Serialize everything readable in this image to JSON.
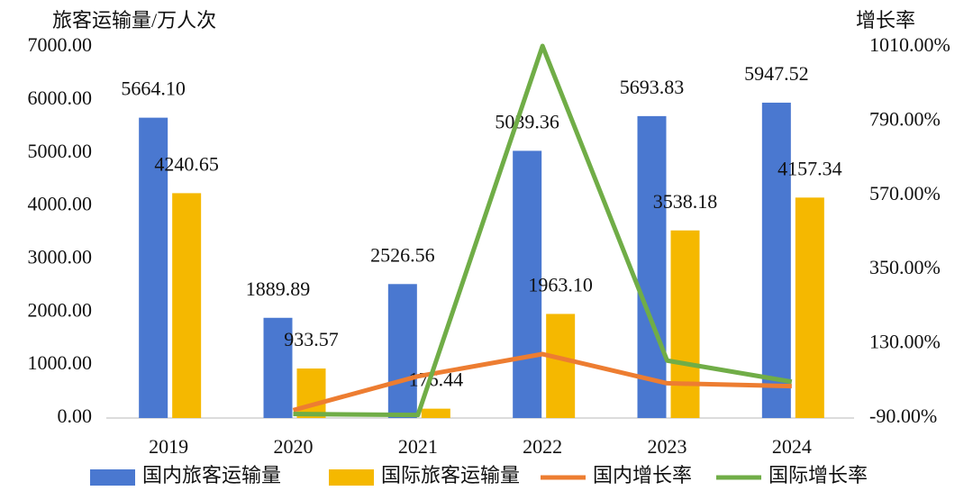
{
  "chart_data": {
    "type": "bar",
    "y_label": "旅客运输量/万人次",
    "y2_label": "增长率",
    "categories": [
      "2019",
      "2020",
      "2021",
      "2022",
      "2023",
      "2024"
    ],
    "series": [
      {
        "name": "国内旅客运输量",
        "type": "bar",
        "color": "#4a78d0",
        "values": [
          5664.1,
          1889.89,
          2526.56,
          5039.36,
          5693.83,
          5947.52
        ],
        "value_labels": [
          "5664.10",
          "1889.89",
          "2526.56",
          "5039.36",
          "5693.83",
          "5947.52"
        ]
      },
      {
        "name": "国际旅客运输量",
        "type": "bar",
        "color": "#f5b800",
        "values": [
          4240.65,
          933.57,
          176.44,
          1963.1,
          3538.18,
          4157.34
        ],
        "value_labels": [
          "4240.65",
          "933.57",
          "176.44",
          "1963.10",
          "3538.18",
          "4157.34"
        ]
      },
      {
        "name": "国内增长率",
        "type": "line",
        "axis": "y2",
        "color": "#ed7d31",
        "values": [
          null,
          -66.6,
          33.7,
          99.5,
          13.0,
          4.5
        ]
      },
      {
        "name": "国际增长率",
        "type": "line",
        "axis": "y2",
        "color": "#70ad47",
        "values": [
          null,
          -78.0,
          -81.1,
          1012.6,
          80.2,
          17.5
        ]
      }
    ],
    "ylim": [
      0,
      7000
    ],
    "yticks": [
      {
        "value": 0,
        "label": "0.00"
      },
      {
        "value": 1000,
        "label": "1000.00"
      },
      {
        "value": 2000,
        "label": "2000.00"
      },
      {
        "value": 3000,
        "label": "3000.00"
      },
      {
        "value": 4000,
        "label": "4000.00"
      },
      {
        "value": 5000,
        "label": "5000.00"
      },
      {
        "value": 6000,
        "label": "6000.00"
      },
      {
        "value": 7000,
        "label": "7000.00"
      }
    ],
    "y2lim": [
      -90,
      1010
    ],
    "y2ticks": [
      {
        "value": -90,
        "label": "-90.00%"
      },
      {
        "value": 130,
        "label": "130.00%"
      },
      {
        "value": 350,
        "label": "350.00%"
      },
      {
        "value": 570,
        "label": "570.00%"
      },
      {
        "value": 790,
        "label": "790.00%"
      },
      {
        "value": 1010,
        "label": "1010.00%"
      }
    ],
    "legend": "bottom"
  }
}
